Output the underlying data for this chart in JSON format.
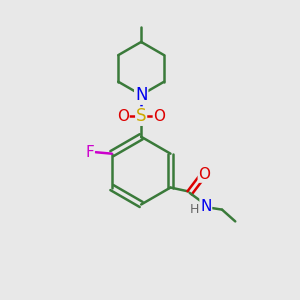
{
  "bg_color": "#e8e8e8",
  "bond_color": "#3a7a3a",
  "bond_width": 1.8,
  "atom_colors": {
    "N": "#0000ee",
    "O": "#dd0000",
    "S": "#ccaa00",
    "F": "#cc00cc",
    "C": "#3a7a3a",
    "H": "#666666"
  },
  "font_size": 10
}
